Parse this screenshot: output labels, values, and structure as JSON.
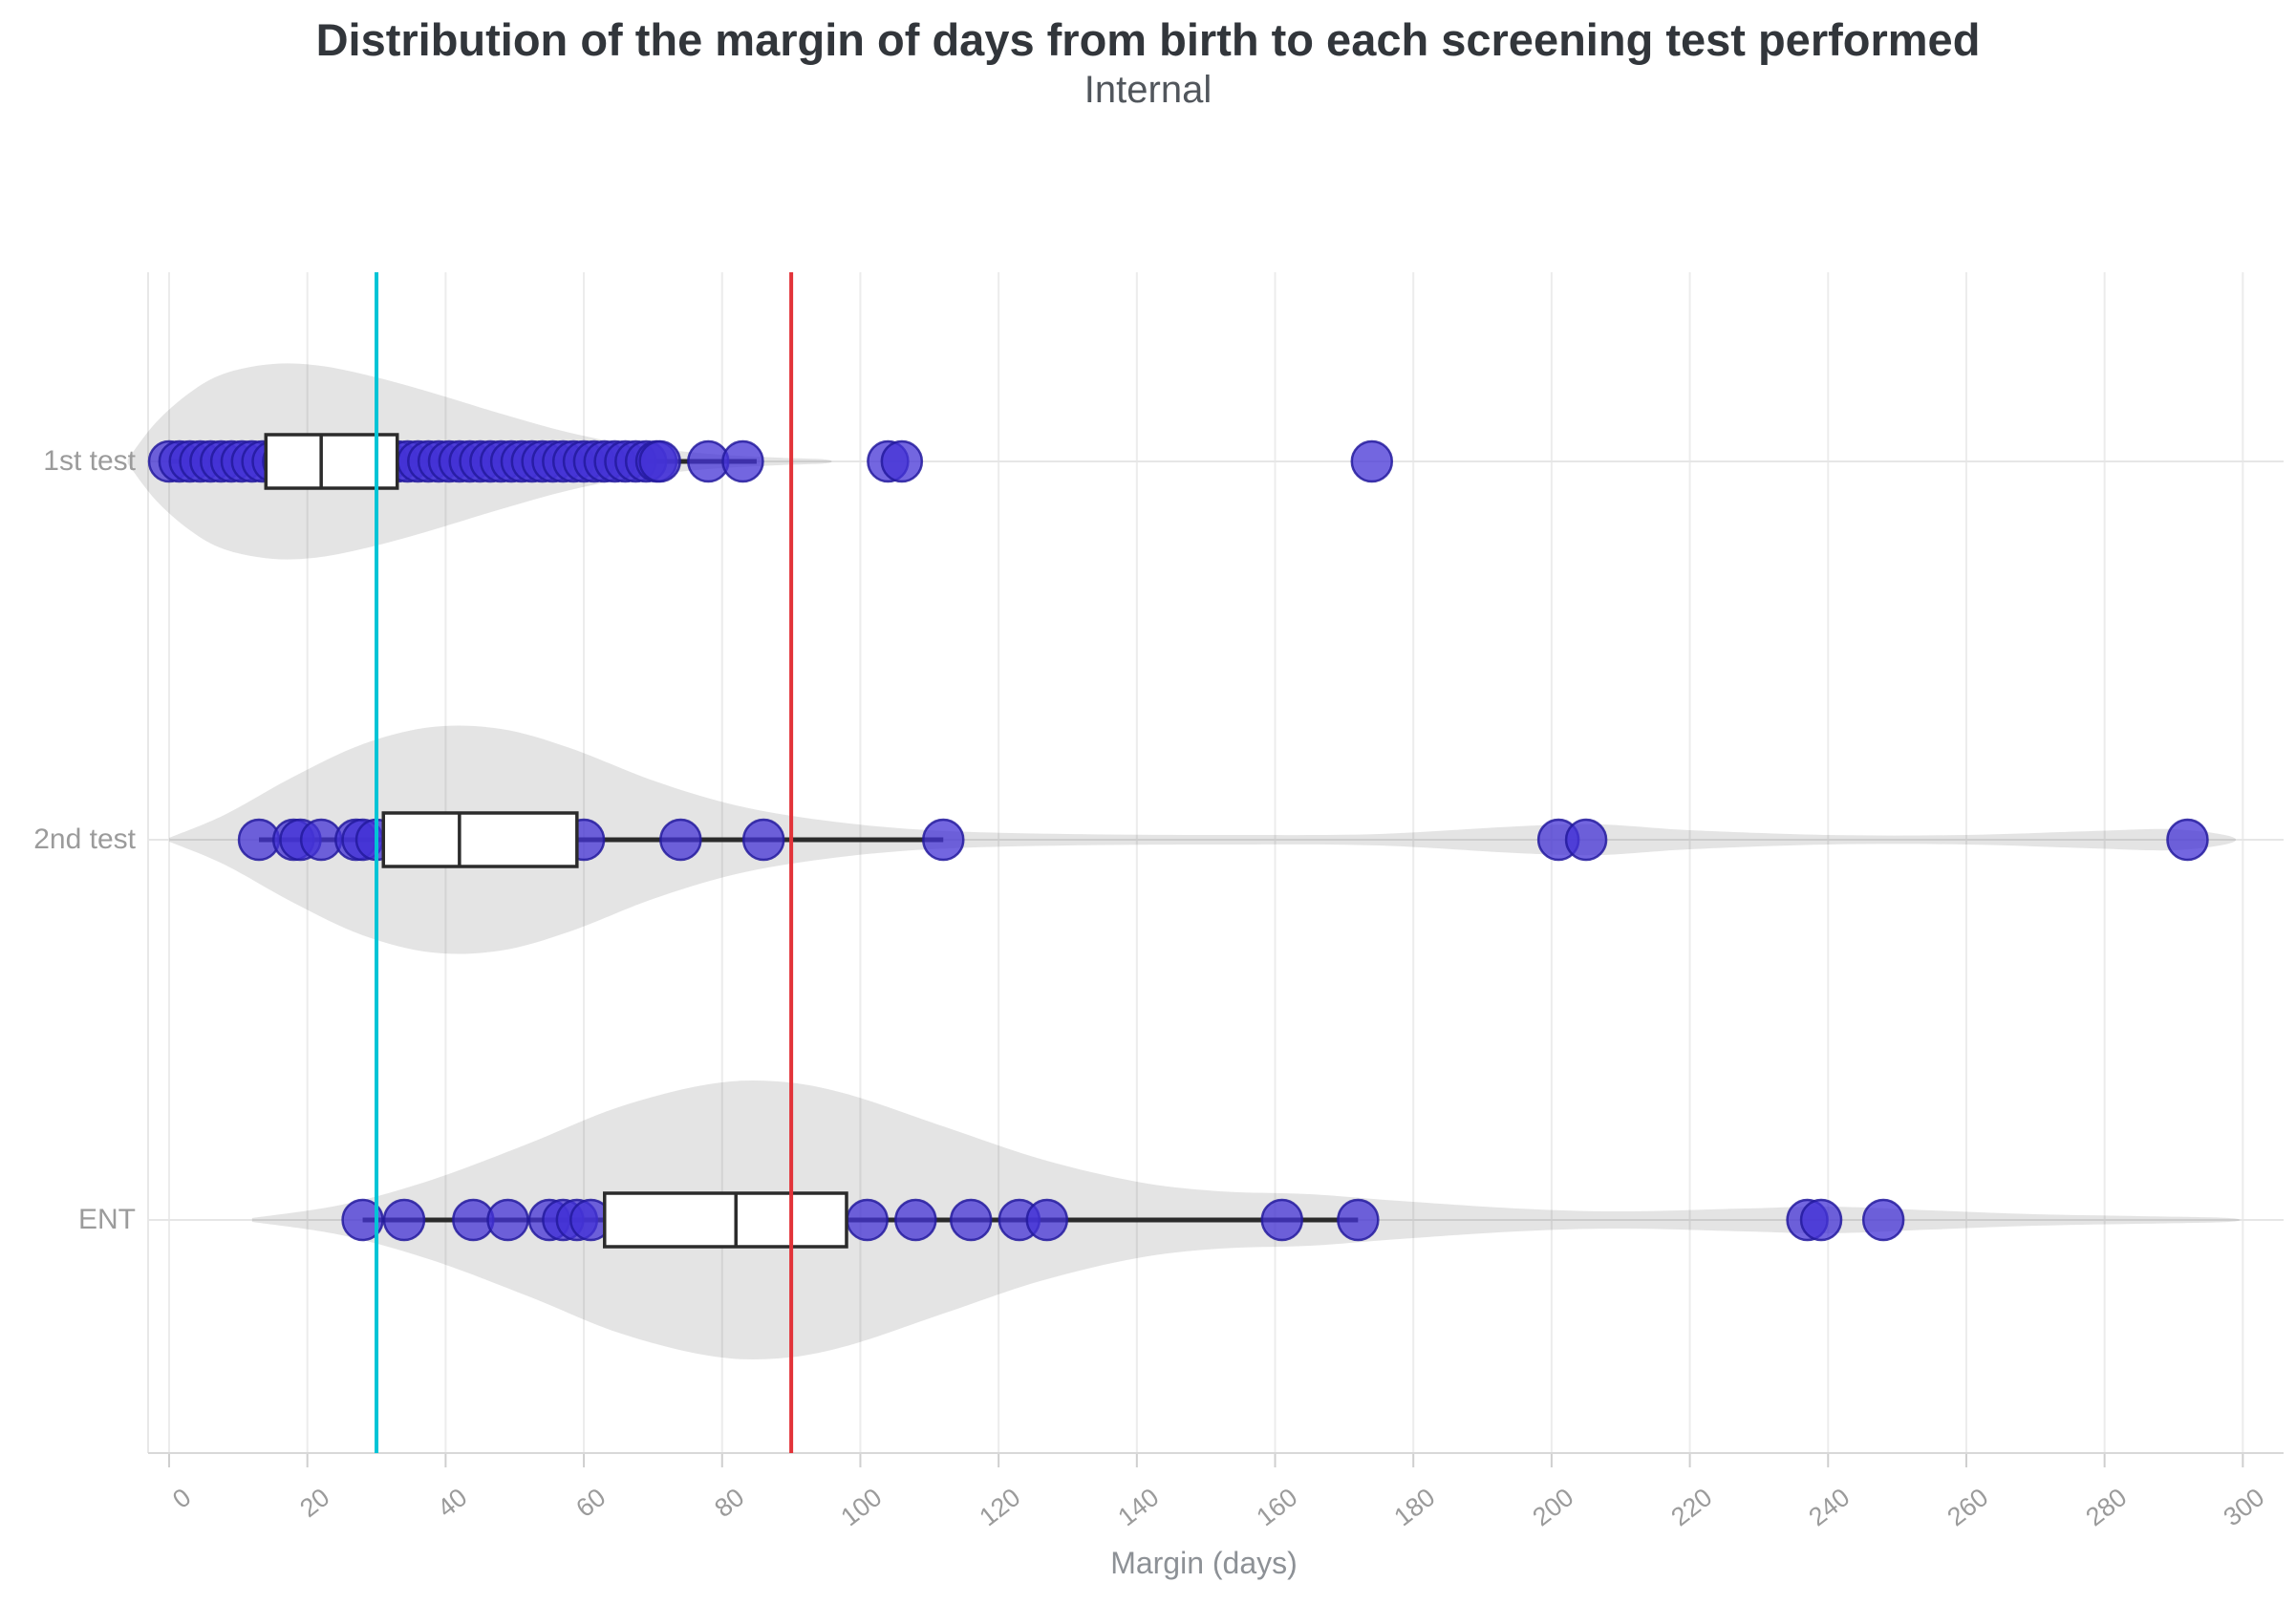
{
  "chart_data": {
    "type": "violin+box+strip",
    "orientation": "horizontal",
    "title": "Distribution of the margin of days from birth to each screening test performed",
    "subtitle": "Internal",
    "xlabel": "Margin (days)",
    "ylabel": "",
    "xlim": [
      -8,
      305
    ],
    "x_ticks": [
      0,
      20,
      40,
      60,
      80,
      100,
      120,
      140,
      160,
      180,
      200,
      220,
      240,
      260,
      280,
      300
    ],
    "grid": true,
    "legend": "none",
    "reference_lines": [
      {
        "name": "cyan-line",
        "value": 30,
        "color": "#00c4d6"
      },
      {
        "name": "red-line",
        "value": 90,
        "color": "#e23339"
      }
    ],
    "marker_color": "#4433d6",
    "marker_edge_color": "#231a9e",
    "violin_color": "rgba(0,0,0,0.105)",
    "box_edge_color": "#2b2b2b",
    "categories": [
      {
        "label": "1st test",
        "box": {
          "q1": 14,
          "median": 22,
          "q3": 33,
          "whisker_low": 0,
          "whisker_high": 85
        },
        "points_dense_range": [
          0,
          71
        ],
        "points": [
          78,
          83,
          104,
          106,
          174
        ],
        "violin_profile": [
          [
            -6,
            2
          ],
          [
            -2,
            40
          ],
          [
            3,
            72
          ],
          [
            8,
            92
          ],
          [
            15,
            102
          ],
          [
            22,
            100
          ],
          [
            30,
            88
          ],
          [
            38,
            72
          ],
          [
            48,
            50
          ],
          [
            58,
            30
          ],
          [
            68,
            16
          ],
          [
            78,
            8
          ],
          [
            88,
            4
          ],
          [
            95,
            2
          ]
        ]
      },
      {
        "label": "2nd test",
        "box": {
          "q1": 31,
          "median": 42,
          "q3": 59,
          "whisker_low": 13,
          "whisker_high": 112
        },
        "points_dense_range": null,
        "points": [
          13,
          18,
          19,
          22,
          27,
          28,
          30,
          60,
          74,
          86,
          112,
          201,
          205,
          292
        ],
        "violin_profile": [
          [
            0,
            2
          ],
          [
            8,
            26
          ],
          [
            18,
            66
          ],
          [
            28,
            100
          ],
          [
            38,
            118
          ],
          [
            48,
            116
          ],
          [
            58,
            96
          ],
          [
            70,
            62
          ],
          [
            82,
            36
          ],
          [
            95,
            20
          ],
          [
            110,
            10
          ],
          [
            130,
            6
          ],
          [
            155,
            5
          ],
          [
            175,
            6
          ],
          [
            195,
            14
          ],
          [
            207,
            16
          ],
          [
            220,
            10
          ],
          [
            240,
            5
          ],
          [
            260,
            5
          ],
          [
            278,
            9
          ],
          [
            290,
            11
          ],
          [
            298,
            4
          ]
        ]
      },
      {
        "label": "ENT",
        "box": {
          "q1": 63,
          "median": 82,
          "q3": 98,
          "whisker_low": 28,
          "whisker_high": 172
        },
        "points_dense_range": null,
        "points": [
          28,
          34,
          44,
          49,
          55,
          57,
          59,
          61,
          101,
          108,
          116,
          123,
          127,
          161,
          172,
          237,
          239,
          248
        ],
        "violin_profile": [
          [
            12,
            2
          ],
          [
            25,
            16
          ],
          [
            38,
            42
          ],
          [
            52,
            80
          ],
          [
            65,
            118
          ],
          [
            78,
            142
          ],
          [
            88,
            145
          ],
          [
            98,
            132
          ],
          [
            112,
            98
          ],
          [
            126,
            64
          ],
          [
            140,
            40
          ],
          [
            152,
            30
          ],
          [
            165,
            27
          ],
          [
            178,
            20
          ],
          [
            195,
            12
          ],
          [
            210,
            9
          ],
          [
            228,
            12
          ],
          [
            240,
            14
          ],
          [
            255,
            10
          ],
          [
            270,
            6
          ],
          [
            285,
            4
          ],
          [
            298,
            2
          ]
        ]
      }
    ]
  }
}
